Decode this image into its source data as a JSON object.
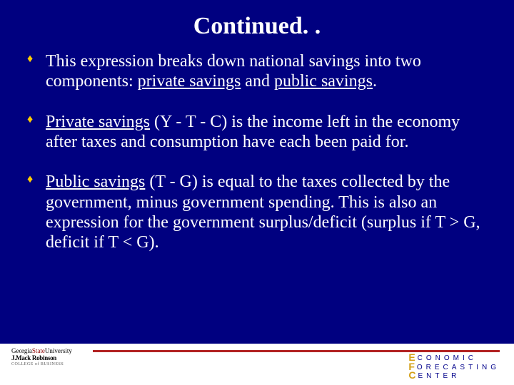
{
  "title": "Continued. .",
  "bullets": [
    {
      "pre": "This expression breaks down national savings into two components: ",
      "u1": "private savings",
      "mid": " and ",
      "u2": "public savings",
      "post": "."
    },
    {
      "u1": "Private savings",
      "post": " (Y - T - C) is the income left in the economy after taxes and consumption have each been paid for."
    },
    {
      "u1": "Public savings",
      "post": " (T - G) is equal to the taxes collected by the government, minus government spending. This is also an expression for the government surplus/deficit (surplus if T > G, deficit if T < G)."
    }
  ],
  "footer": {
    "left": {
      "line1a": "Georgia",
      "line1b": "State",
      "line1c": "University",
      "line2": "J.Mack Robinson",
      "line3": "COLLEGE of BUSINESS"
    },
    "right": {
      "r1": "CONOMIC",
      "r2": "ORECASTING",
      "r3": "ENTER"
    }
  },
  "colors": {
    "background": "#000080",
    "text": "#ffffff",
    "bullet": "#ffcc00",
    "footer_bg": "#ffffff",
    "footer_line": "#b22222"
  }
}
